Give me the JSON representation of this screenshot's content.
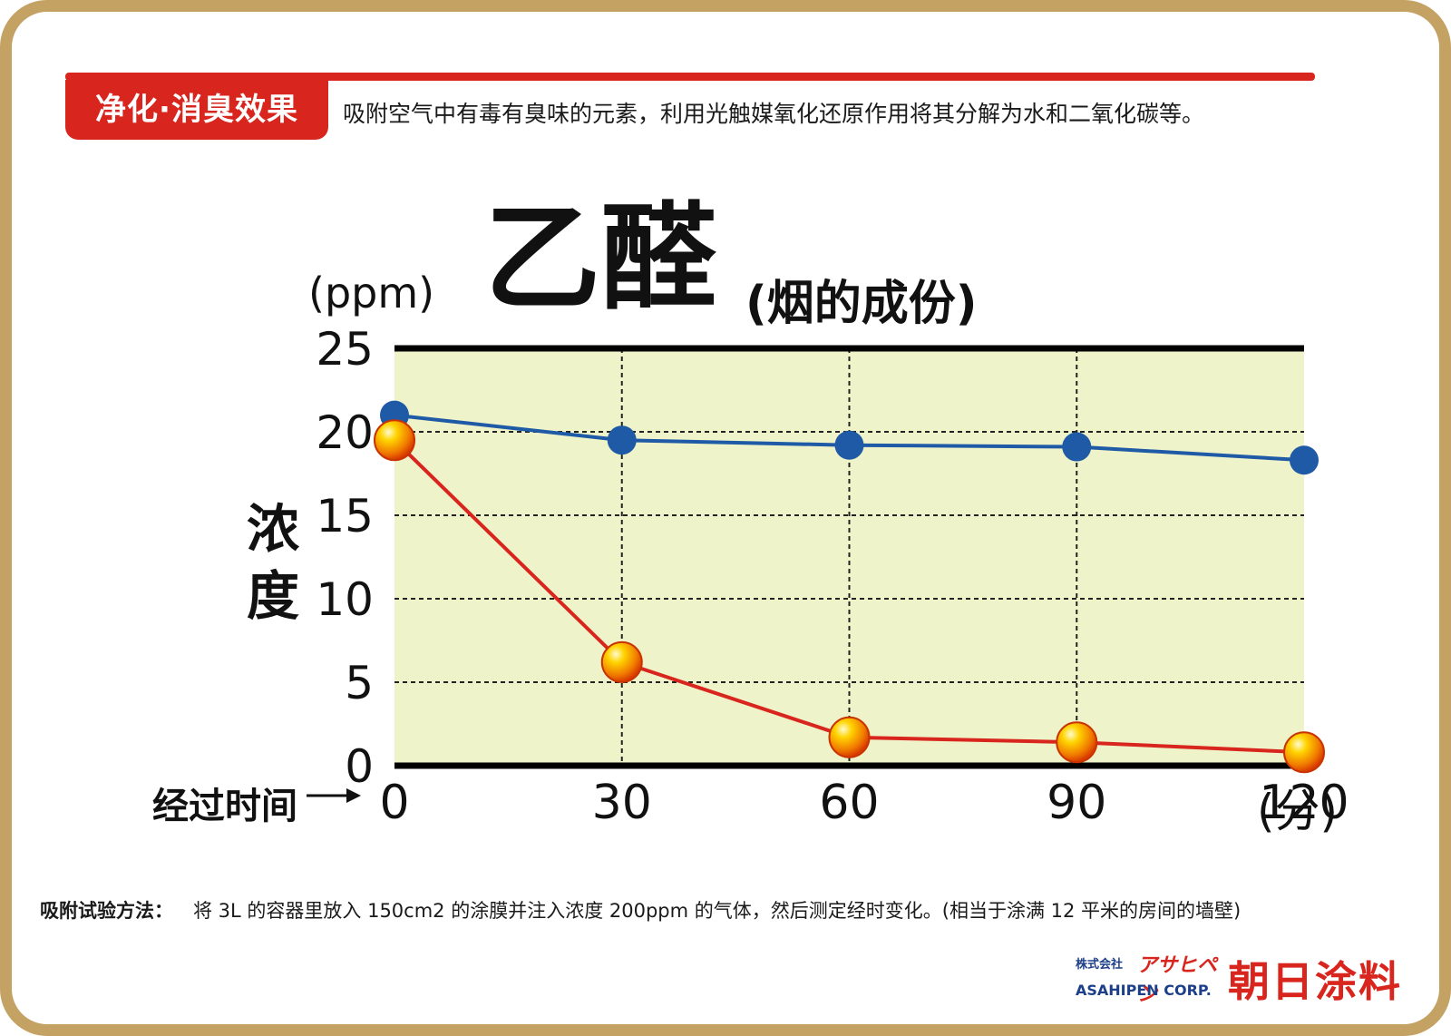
{
  "header": {
    "badge": "净化·消臭效果",
    "description": "吸附空气中有毒有臭味的元素，利用光触媒氧化还原作用将其分解为水和二氧化碳等。"
  },
  "chart_data": {
    "type": "line",
    "title": "乙醛",
    "subtitle": "(烟的成份)",
    "ylabel": "浓度",
    "yunit": "(ppm)",
    "xlabel": "经过时间",
    "xunit": "(分)",
    "x": [
      0,
      30,
      60,
      90,
      120
    ],
    "xticks": [
      "0",
      "30",
      "60",
      "90",
      "120"
    ],
    "ylim": [
      0,
      25
    ],
    "yticks": [
      "0",
      "5",
      "10",
      "15",
      "20",
      "25"
    ],
    "grid": true,
    "series": [
      {
        "values": [
          21,
          19.5,
          19.2,
          19.1,
          18.3
        ],
        "color": "#1f5aa6"
      },
      {
        "values": [
          19.5,
          6.2,
          1.7,
          1.4,
          0.8
        ],
        "color": "#d8251d"
      }
    ]
  },
  "footer": {
    "method_label": "吸附试验方法：",
    "method_text": "将 3L 的容器里放入 150cm2 的涂膜并注入浓度 200ppm 的气体，然后测定经时变化。(相当于涂满 12 平米的房间的墙壁)"
  },
  "logo": {
    "kaisha": "株式会社",
    "kana": "アサヒペン",
    "corp": "ASAHIPEN CORP.",
    "chinese": "朝日涂料"
  },
  "colors": {
    "accent": "#d8251d",
    "frame": "#c3a264",
    "plot_bg": "#eef3c9"
  }
}
